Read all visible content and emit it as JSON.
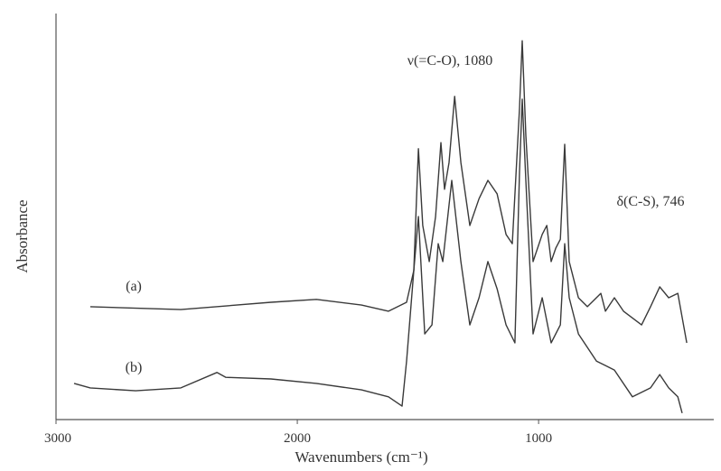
{
  "chart_data": {
    "type": "line",
    "xlabel": "Wavenumbers (cm⁻¹)",
    "ylabel": "Absorbance",
    "xlim": [
      3000,
      274
    ],
    "xticks": [
      3000,
      2000,
      1000
    ],
    "ylim": [
      0,
      100
    ],
    "annotations": [
      {
        "text": "ν(=C-O), 1080"
      },
      {
        "text": "δ(C-S), 746"
      }
    ],
    "series": [
      {
        "name": "(a)",
        "color": "#3a3a3a",
        "x": [
          2858,
          2483,
          2109,
          1921,
          1734,
          1622,
          1547,
          1517,
          1498,
          1480,
          1453,
          1427,
          1405,
          1390,
          1371,
          1348,
          1322,
          1285,
          1247,
          1210,
          1172,
          1135,
          1109,
          1079,
          1068,
          1053,
          1023,
          985,
          966,
          948,
          929,
          910,
          892,
          873,
          835,
          798,
          742,
          723,
          686,
          648,
          573,
          536,
          498,
          461,
          423,
          386
        ],
        "values": [
          27.8,
          27.1,
          28.9,
          29.6,
          28.2,
          26.7,
          28.9,
          36.7,
          66.7,
          47.8,
          38.9,
          50,
          68.2,
          56.7,
          63.3,
          79.6,
          63.3,
          47.8,
          54.4,
          58.9,
          55.6,
          45.6,
          43.3,
          76.7,
          93.3,
          70,
          38.9,
          45.6,
          47.8,
          38.9,
          42.2,
          44.4,
          67.8,
          38.9,
          30,
          27.8,
          31.1,
          26.7,
          30,
          26.7,
          23.3,
          27.8,
          32.7,
          30,
          31.1,
          18.9
        ]
      },
      {
        "name": "(b)",
        "color": "#3a3a3a",
        "x": [
          2925,
          2858,
          2670,
          2483,
          2333,
          2296,
          2109,
          1921,
          1734,
          1622,
          1566,
          1547,
          1517,
          1498,
          1472,
          1442,
          1416,
          1397,
          1360,
          1322,
          1285,
          1247,
          1210,
          1172,
          1135,
          1098,
          1079,
          1068,
          1053,
          1023,
          985,
          948,
          910,
          892,
          873,
          835,
          760,
          723,
          686,
          611,
          536,
          498,
          461,
          423,
          405
        ],
        "values": [
          8.9,
          7.8,
          7.1,
          7.8,
          11.6,
          10.4,
          10,
          8.9,
          7.3,
          5.6,
          3.3,
          14.4,
          36.7,
          50,
          21.1,
          23.3,
          43.3,
          38.9,
          58.9,
          38.9,
          23.3,
          30,
          38.9,
          32.2,
          23.3,
          18.9,
          61.1,
          78.9,
          58.9,
          21.1,
          30,
          18.9,
          23.3,
          43.3,
          30,
          21.1,
          14.4,
          13.3,
          12.2,
          5.6,
          7.8,
          11.1,
          7.8,
          5.6,
          1.6
        ]
      }
    ]
  }
}
